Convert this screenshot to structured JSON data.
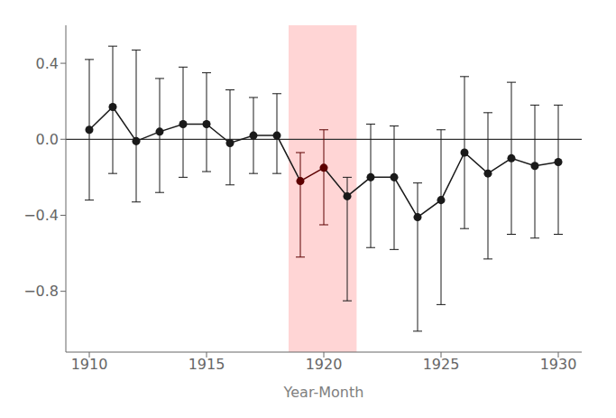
{
  "chart_data": {
    "type": "line",
    "x": [
      1910,
      1911,
      1912,
      1913,
      1914,
      1915,
      1916,
      1917,
      1918,
      1919,
      1920,
      1921,
      1922,
      1923,
      1924,
      1925,
      1926,
      1927,
      1928,
      1929,
      1930
    ],
    "xlabel": "Year-Month",
    "xlim": [
      1909,
      1931
    ],
    "xticks": [
      1910,
      1915,
      1920,
      1925,
      1930
    ],
    "ylim": [
      -1.12,
      0.6
    ],
    "yticks": [
      {
        "value": -0.8,
        "label": "−0.8"
      },
      {
        "value": -0.4,
        "label": "−0.4"
      },
      {
        "value": 0,
        "label": "0.0"
      },
      {
        "value": 0.4,
        "label": "0.4"
      }
    ],
    "grid": false,
    "series": [
      {
        "values": [
          0.05,
          0.17,
          -0.01,
          0.04,
          0.08,
          0.08,
          -0.02,
          0.02,
          0.02,
          -0.22,
          -0.15,
          -0.3,
          -0.2,
          -0.2,
          -0.41,
          -0.32,
          -0.07,
          -0.18,
          -0.1,
          -0.14,
          -0.12
        ],
        "yerr_low": [
          0.37,
          0.35,
          0.32,
          0.32,
          0.28,
          0.25,
          0.22,
          0.2,
          0.2,
          0.4,
          0.3,
          0.55,
          0.37,
          0.38,
          0.6,
          0.55,
          0.4,
          0.45,
          0.4,
          0.38,
          0.38
        ],
        "yerr_high": [
          0.37,
          0.32,
          0.48,
          0.28,
          0.3,
          0.27,
          0.28,
          0.2,
          0.22,
          0.15,
          0.2,
          0.1,
          0.28,
          0.27,
          0.18,
          0.37,
          0.4,
          0.32,
          0.4,
          0.32,
          0.3
        ],
        "colors": [
          "#1a1a1a",
          "#1a1a1a",
          "#1a1a1a",
          "#1a1a1a",
          "#1a1a1a",
          "#1a1a1a",
          "#1a1a1a",
          "#1a1a1a",
          "#1a1a1a",
          "#5c0000",
          "#5c0000",
          "#1a1a1a",
          "#1a1a1a",
          "#1a1a1a",
          "#1a1a1a",
          "#1a1a1a",
          "#1a1a1a",
          "#1a1a1a",
          "#1a1a1a",
          "#1a1a1a",
          "#1a1a1a"
        ],
        "marker": "o"
      }
    ],
    "shaded_region": {
      "x": [
        1918.5,
        1921.4
      ],
      "color": "#ffb3b3"
    },
    "reference_line": {
      "y": 0,
      "color": "#333333"
    }
  }
}
